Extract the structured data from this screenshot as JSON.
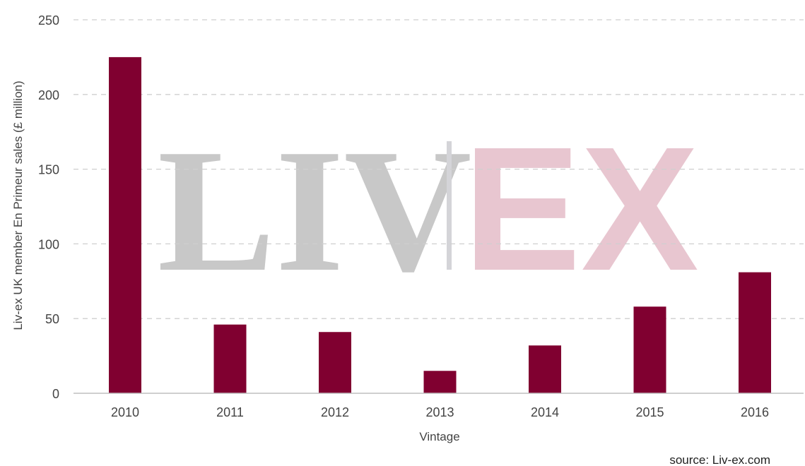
{
  "chart_data": {
    "type": "bar",
    "categories": [
      "2010",
      "2011",
      "2012",
      "2013",
      "2014",
      "2015",
      "2016"
    ],
    "values": [
      225,
      46,
      41,
      15,
      32,
      58,
      81
    ],
    "xlabel": "Vintage",
    "ylabel": "Liv-ex UK member En Primeur sales (£ million)",
    "ylim": [
      0,
      250
    ],
    "yticks": [
      0,
      50,
      100,
      150,
      200,
      250
    ],
    "grid": true,
    "legend": "none",
    "bar_color": "#800030",
    "grid_color": "#cfcfcf",
    "axis_color": "#bfbfbf"
  },
  "watermark": {
    "left_text": "LIV",
    "right_text": "EX",
    "left_color": "#c8c8c8",
    "right_color": "#e8c6d0",
    "divider_color": "#d4d4d8"
  },
  "source": "source: Liv-ex.com"
}
